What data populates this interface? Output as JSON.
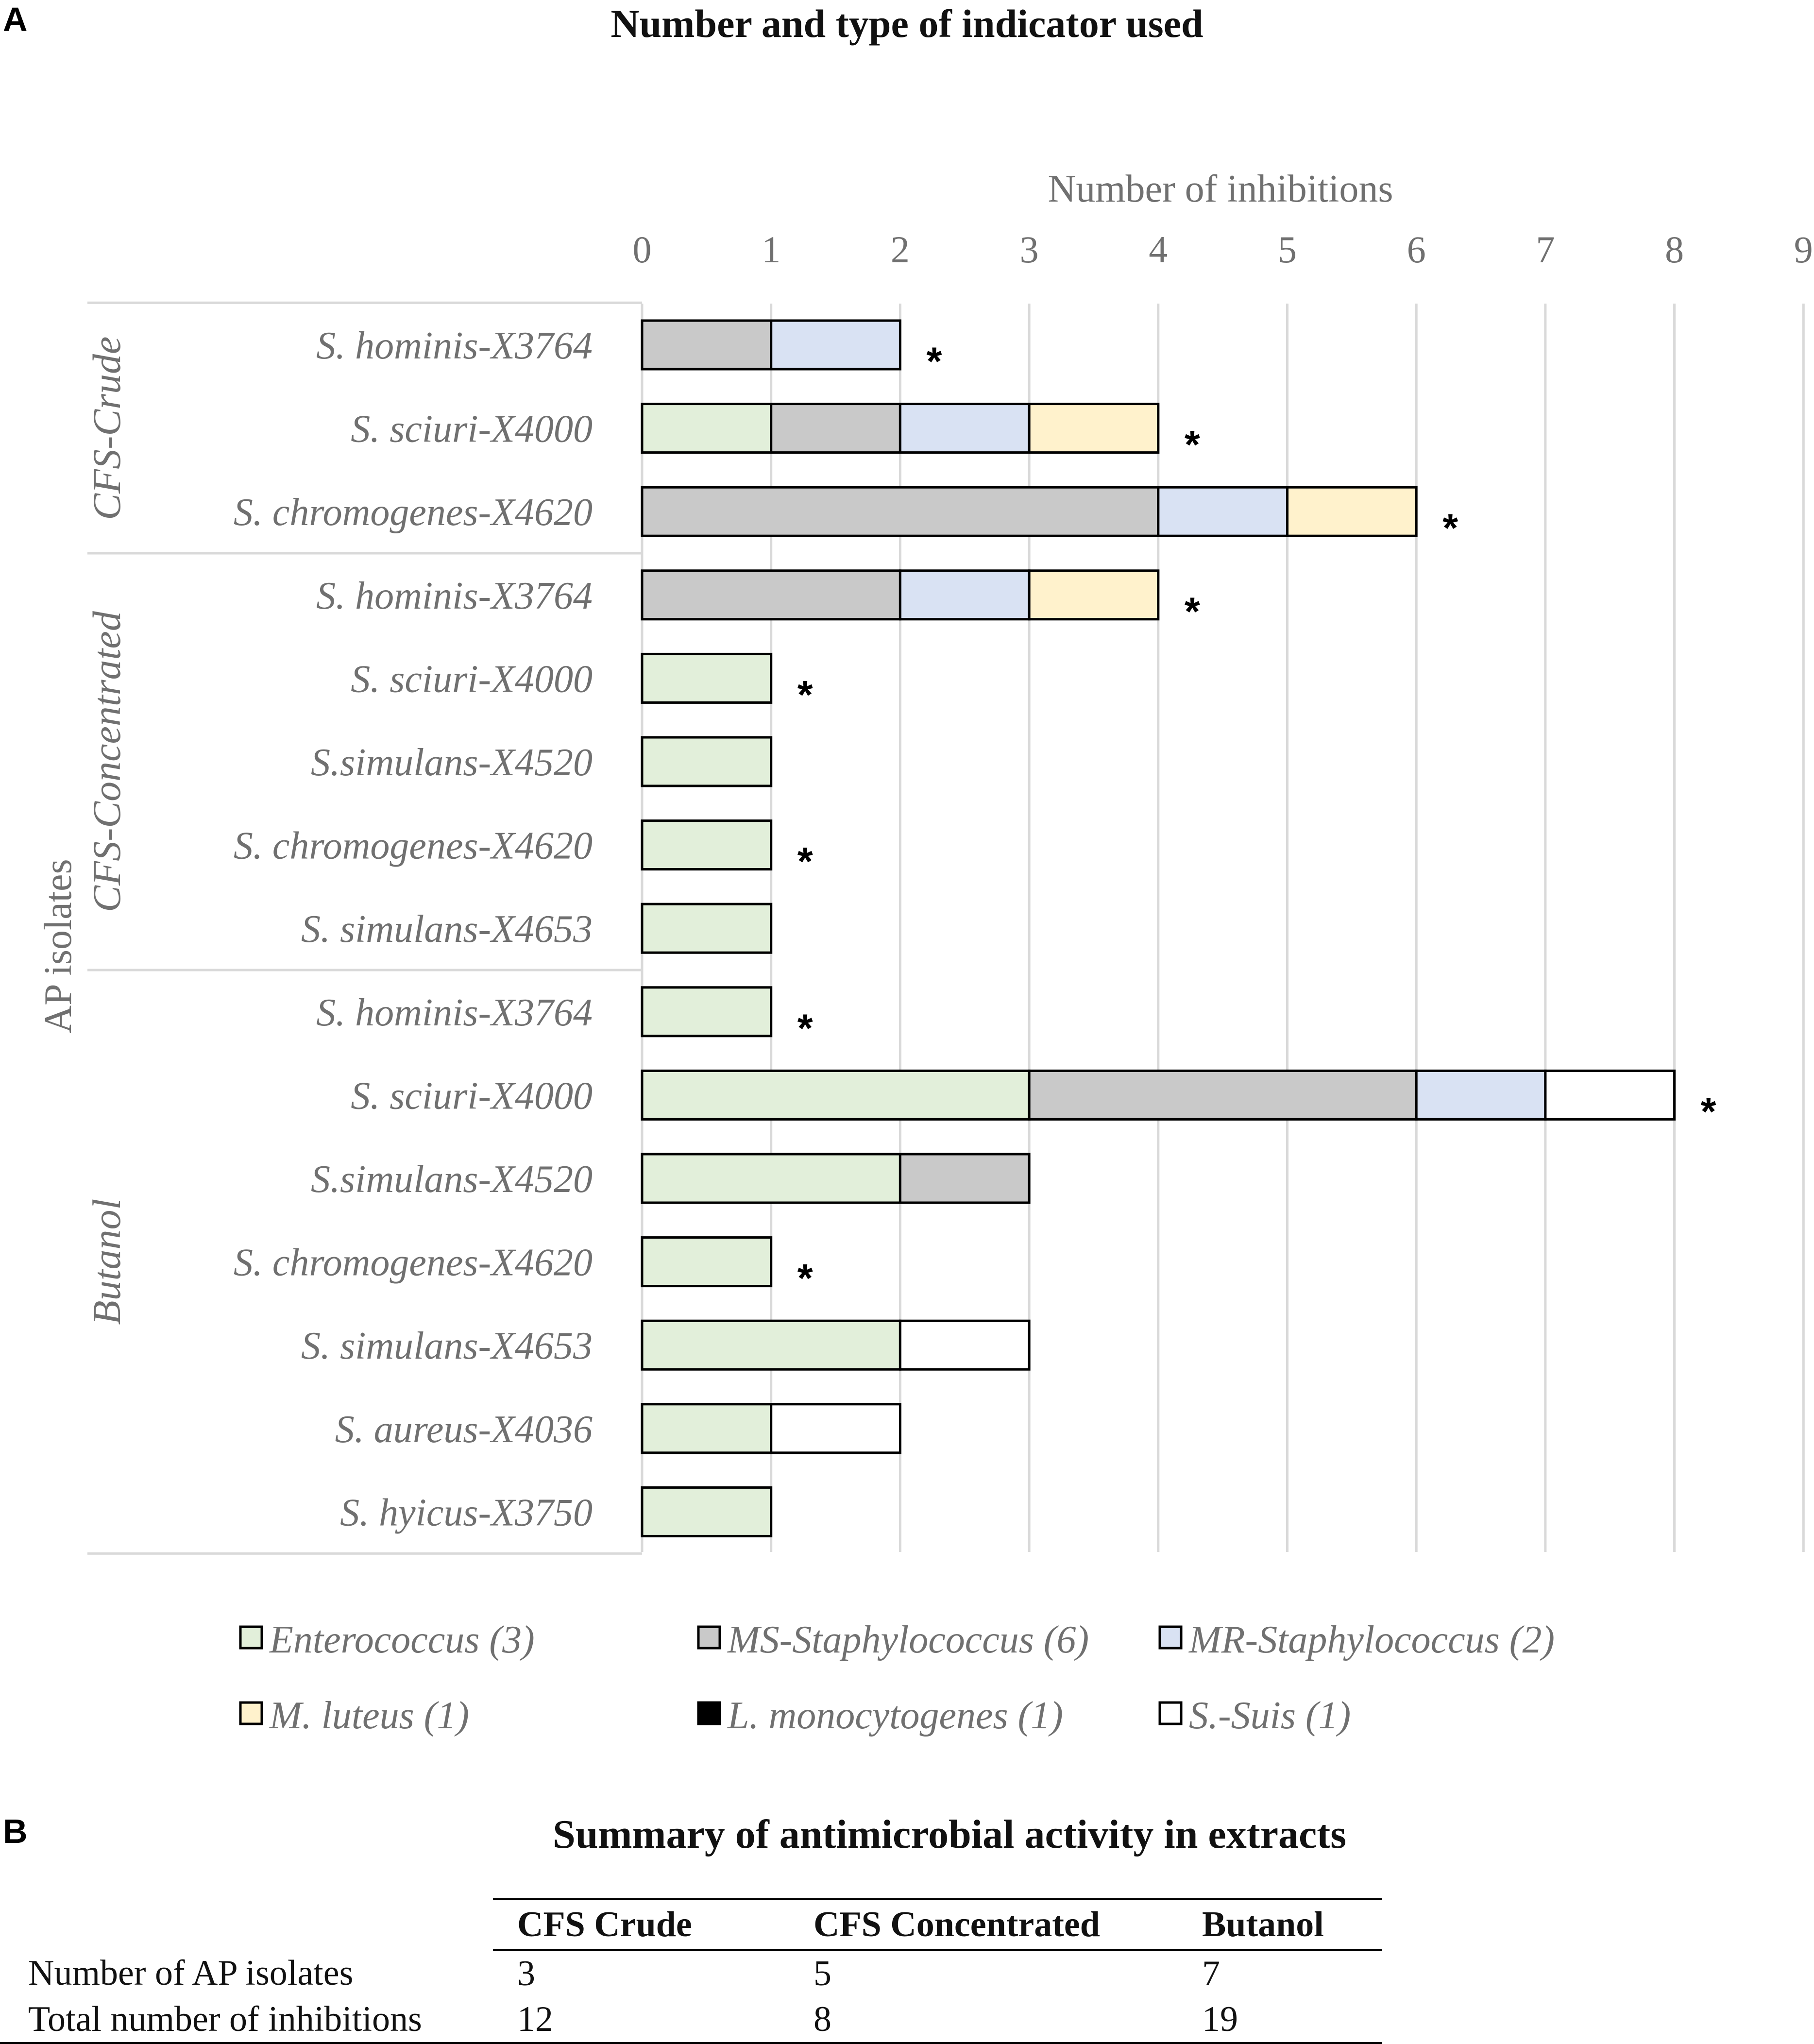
{
  "panel_a_label": "A",
  "panel_b_label": "B",
  "chart_data": {
    "type": "bar",
    "orientation": "horizontal",
    "stacked": true,
    "title": "Number and type of indicator used",
    "xlabel": "Number of inhibitions",
    "ylabel": "AP isolates",
    "xlim": [
      0,
      9
    ],
    "xticks": [
      "0",
      "1",
      "2",
      "3",
      "4",
      "5",
      "6",
      "7",
      "8",
      "9"
    ],
    "grid": true,
    "legend_position": "bottom",
    "groups": [
      {
        "name": "CFS-Crude",
        "start": 0,
        "count": 3
      },
      {
        "name": "CFS-Concentrated",
        "start": 3,
        "count": 5
      },
      {
        "name": "Butanol",
        "start": 8,
        "count": 7
      }
    ],
    "categories": [
      "S. hominis-X3764",
      "S. sciuri-X4000",
      "S. chromogenes-X4620",
      "S. hominis-X3764",
      "S. sciuri-X4000",
      "S.simulans-X4520",
      "S. chromogenes-X4620",
      "S. simulans-X4653",
      "S. hominis-X3764",
      "S. sciuri-X4000",
      "S.simulans-X4520",
      "S. chromogenes-X4620",
      "S. simulans-X4653",
      "S. aureus-X4036",
      "S. hyicus-X3750"
    ],
    "series": [
      {
        "name": "Enterococcus (3)",
        "color": "#e2efda",
        "values": [
          0,
          1,
          0,
          0,
          1,
          1,
          1,
          1,
          1,
          3,
          2,
          1,
          2,
          1,
          1
        ]
      },
      {
        "name": "MS-Staphylococcus (6)",
        "color": "#c9c9c9",
        "values": [
          1,
          1,
          4,
          2,
          0,
          0,
          0,
          0,
          0,
          3,
          1,
          0,
          0,
          0,
          0
        ]
      },
      {
        "name": "MR-Staphylococcus (2)",
        "color": "#d9e2f3",
        "values": [
          1,
          1,
          1,
          1,
          0,
          0,
          0,
          0,
          0,
          1,
          0,
          0,
          0,
          0,
          0
        ]
      },
      {
        "name": "M. luteus (1)",
        "color": "#fff2cc",
        "values": [
          0,
          1,
          1,
          1,
          0,
          0,
          0,
          0,
          0,
          0,
          0,
          0,
          0,
          0,
          0
        ]
      },
      {
        "name": "L. monocytogenes (1)",
        "color": "#000000",
        "values": [
          0,
          0,
          0,
          0,
          0,
          0,
          0,
          0,
          0,
          0,
          0,
          0,
          0,
          0,
          0
        ]
      },
      {
        "name": "S.-Suis (1)",
        "color": "#ffffff",
        "values": [
          0,
          0,
          0,
          0,
          0,
          0,
          0,
          0,
          0,
          1,
          0,
          0,
          1,
          1,
          0
        ]
      }
    ],
    "significance_marker": "*",
    "significant": [
      true,
      true,
      true,
      true,
      true,
      false,
      true,
      false,
      true,
      true,
      false,
      true,
      false,
      false,
      false
    ]
  },
  "summary_table": {
    "title": "Summary of antimicrobial activity in extracts",
    "columns": [
      "CFS Crude",
      "CFS Concentrated",
      "Butanol"
    ],
    "rows": [
      {
        "label": "Number of AP isolates",
        "values": [
          "3",
          "5",
          "7"
        ]
      },
      {
        "label": "Total number of inhibitions",
        "values": [
          "12",
          "8",
          "19"
        ]
      }
    ]
  }
}
